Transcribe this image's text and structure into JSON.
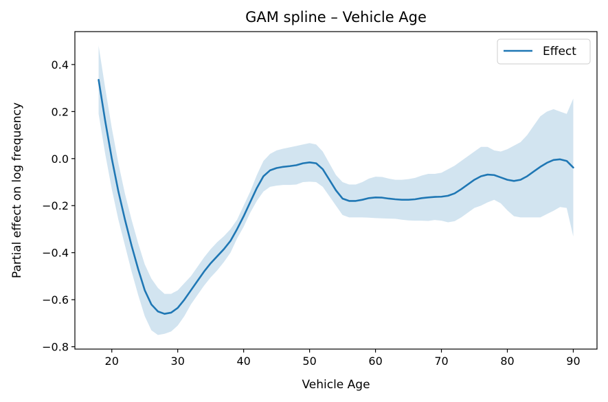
{
  "chart_data": {
    "type": "line",
    "title": "GAM spline – Vehicle Age",
    "xlabel": "Vehicle Age",
    "ylabel": "Partial effect on log frequency",
    "xlim": [
      14.4,
      93.6
    ],
    "ylim": [
      -0.81,
      0.54
    ],
    "xticks": [
      20,
      30,
      40,
      50,
      60,
      70,
      80,
      90
    ],
    "xtick_labels": [
      "20",
      "30",
      "40",
      "50",
      "60",
      "70",
      "80",
      "90"
    ],
    "yticks": [
      -0.8,
      -0.6,
      -0.4,
      -0.2,
      0.0,
      0.2,
      0.4
    ],
    "ytick_labels": [
      "−0.8",
      "−0.6",
      "−0.4",
      "−0.2",
      "0.0",
      "0.2",
      "0.4"
    ],
    "grid": false,
    "legend": {
      "position": "upper right"
    },
    "series": [
      {
        "name": "Effect",
        "color": "#1f77b4",
        "x": [
          18,
          19,
          20,
          21,
          22,
          23,
          24,
          25,
          26,
          27,
          28,
          29,
          30,
          31,
          32,
          33,
          34,
          35,
          36,
          37,
          38,
          39,
          40,
          41,
          42,
          43,
          44,
          45,
          46,
          47,
          48,
          49,
          50,
          51,
          52,
          53,
          54,
          55,
          56,
          57,
          58,
          59,
          60,
          61,
          62,
          63,
          64,
          65,
          66,
          67,
          68,
          69,
          70,
          71,
          72,
          73,
          74,
          75,
          76,
          77,
          78,
          79,
          80,
          81,
          82,
          83,
          84,
          85,
          86,
          87,
          88,
          89,
          90
        ],
        "y": [
          0.335,
          0.16,
          0.0,
          -0.14,
          -0.26,
          -0.37,
          -0.47,
          -0.56,
          -0.62,
          -0.65,
          -0.66,
          -0.655,
          -0.635,
          -0.6,
          -0.56,
          -0.52,
          -0.48,
          -0.445,
          -0.415,
          -0.385,
          -0.35,
          -0.3,
          -0.245,
          -0.185,
          -0.125,
          -0.075,
          -0.05,
          -0.04,
          -0.035,
          -0.032,
          -0.028,
          -0.02,
          -0.016,
          -0.02,
          -0.045,
          -0.09,
          -0.135,
          -0.17,
          -0.18,
          -0.18,
          -0.175,
          -0.168,
          -0.165,
          -0.166,
          -0.17,
          -0.173,
          -0.175,
          -0.175,
          -0.173,
          -0.168,
          -0.165,
          -0.163,
          -0.162,
          -0.158,
          -0.148,
          -0.13,
          -0.11,
          -0.09,
          -0.075,
          -0.068,
          -0.07,
          -0.08,
          -0.09,
          -0.095,
          -0.09,
          -0.075,
          -0.055,
          -0.035,
          -0.018,
          -0.006,
          -0.003,
          -0.01,
          -0.038
        ]
      }
    ],
    "band": {
      "color": "#1f77b4",
      "opacity": 0.2,
      "upper": [
        0.48,
        0.3,
        0.13,
        -0.02,
        -0.15,
        -0.26,
        -0.36,
        -0.45,
        -0.51,
        -0.55,
        -0.575,
        -0.575,
        -0.56,
        -0.53,
        -0.5,
        -0.46,
        -0.42,
        -0.385,
        -0.355,
        -0.33,
        -0.3,
        -0.26,
        -0.2,
        -0.14,
        -0.07,
        -0.01,
        0.02,
        0.035,
        0.042,
        0.048,
        0.054,
        0.06,
        0.066,
        0.06,
        0.03,
        -0.02,
        -0.07,
        -0.1,
        -0.11,
        -0.11,
        -0.1,
        -0.085,
        -0.077,
        -0.078,
        -0.085,
        -0.09,
        -0.09,
        -0.087,
        -0.082,
        -0.072,
        -0.065,
        -0.065,
        -0.06,
        -0.045,
        -0.03,
        -0.01,
        0.01,
        0.03,
        0.05,
        0.05,
        0.035,
        0.03,
        0.04,
        0.055,
        0.07,
        0.1,
        0.14,
        0.18,
        0.2,
        0.21,
        0.2,
        0.19,
        0.255
      ]
    }
  },
  "legend_label": "Effect"
}
